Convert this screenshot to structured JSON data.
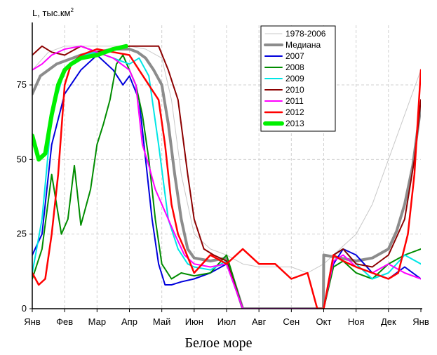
{
  "chart_data": {
    "type": "line",
    "title": "Белое море",
    "ylabel": "L, тыс.км",
    "ylabel_sup": "2",
    "ylim": [
      0,
      95
    ],
    "yticks": [
      0,
      25,
      50,
      75
    ],
    "x_categories": [
      "Янв",
      "Фев",
      "Мар",
      "Апр",
      "Май",
      "Июн",
      "Июл",
      "Авг",
      "Сен",
      "Окт",
      "Ноя",
      "Дек",
      "Янв"
    ],
    "x_unit": "month index (0 = Jan start, 12 = next Jan)",
    "legend_position": "top-right",
    "series": [
      {
        "name": "1978-2006",
        "color": "#c8c8c8",
        "width": 1,
        "x": [
          0,
          0.5,
          1,
          1.5,
          2,
          2.5,
          3,
          3.5,
          4,
          4.3,
          4.6,
          5,
          5.5,
          6,
          6.5,
          7,
          7.5,
          8,
          8.5,
          9,
          9.5,
          10,
          10.5,
          11,
          11.5,
          12
        ],
        "y": [
          80,
          86,
          88,
          88,
          88,
          88,
          88,
          87,
          84,
          70,
          45,
          25,
          20,
          18,
          15,
          14,
          14,
          14,
          12,
          15,
          20,
          25,
          35,
          50,
          65,
          80
        ]
      },
      {
        "name": "Медиана",
        "color": "#8c8c8c",
        "width": 4,
        "x": [
          0,
          0.25,
          0.5,
          0.75,
          1,
          1.5,
          2,
          2.5,
          3,
          3.25,
          3.5,
          3.75,
          4,
          4.2,
          4.4,
          4.6,
          4.8,
          5,
          5.5,
          6,
          6.5,
          7,
          7.5,
          8,
          8.5,
          8.99,
          9,
          9.5,
          10,
          10.5,
          11,
          11.25,
          11.5,
          11.75,
          12
        ],
        "y": [
          72,
          78,
          80,
          82,
          83,
          85,
          86,
          87,
          87,
          86,
          84,
          80,
          75,
          62,
          45,
          30,
          20,
          17,
          16,
          17,
          0,
          0,
          0,
          0,
          0,
          0,
          18,
          17,
          16,
          17,
          20,
          26,
          35,
          48,
          68
        ]
      },
      {
        "name": "2007",
        "color": "#0000dc",
        "width": 2,
        "x": [
          0,
          0.3,
          0.6,
          1,
          1.5,
          2,
          2.5,
          2.8,
          3,
          3.3,
          3.5,
          3.7,
          3.9,
          4.1,
          4.3,
          4.6,
          5,
          5.5,
          6,
          6.5,
          7,
          7.5,
          8,
          8.5,
          9,
          9.3,
          9.6,
          10,
          10.5,
          11,
          11.5,
          12
        ],
        "y": [
          18,
          25,
          55,
          72,
          80,
          85,
          80,
          75,
          78,
          70,
          50,
          30,
          15,
          8,
          8,
          9,
          10,
          12,
          15,
          0,
          0,
          0,
          0,
          0,
          0,
          15,
          20,
          18,
          12,
          10,
          14,
          10
        ]
      },
      {
        "name": "2008",
        "color": "#008c00",
        "width": 2,
        "x": [
          0,
          0.3,
          0.6,
          0.9,
          1.1,
          1.3,
          1.5,
          1.8,
          2,
          2.2,
          2.4,
          2.6,
          2.8,
          3,
          3.2,
          3.4,
          3.6,
          3.8,
          4,
          4.3,
          4.6,
          5,
          5.5,
          6,
          6.5,
          7,
          7.5,
          8,
          8.5,
          9,
          9.3,
          9.6,
          10,
          10.5,
          11,
          11.5,
          12
        ],
        "y": [
          10,
          20,
          45,
          25,
          30,
          48,
          28,
          40,
          55,
          62,
          70,
          82,
          85,
          80,
          75,
          65,
          50,
          30,
          15,
          10,
          12,
          11,
          12,
          18,
          0,
          0,
          0,
          0,
          0,
          0,
          14,
          16,
          12,
          10,
          15,
          18,
          20
        ]
      },
      {
        "name": "2009",
        "color": "#00e6e6",
        "width": 2,
        "x": [
          0,
          0.3,
          0.6,
          1,
          1.5,
          2,
          2.5,
          3,
          3.3,
          3.6,
          3.9,
          4.2,
          4.5,
          4.8,
          5,
          5.5,
          6,
          6.5,
          7,
          7.5,
          8,
          8.5,
          9,
          9.3,
          9.6,
          10,
          10.5,
          11,
          11.5,
          12
        ],
        "y": [
          12,
          30,
          65,
          80,
          85,
          86,
          84,
          82,
          84,
          78,
          55,
          30,
          20,
          15,
          14,
          13,
          16,
          0,
          0,
          0,
          0,
          0,
          0,
          18,
          20,
          15,
          10,
          12,
          18,
          15
        ]
      },
      {
        "name": "2010",
        "color": "#8c0000",
        "width": 2,
        "x": [
          0,
          0.3,
          0.6,
          1,
          1.5,
          2,
          2.5,
          3,
          3.3,
          3.6,
          3.9,
          4.2,
          4.5,
          4.8,
          5,
          5.3,
          5.6,
          6,
          6.5,
          7,
          7.5,
          8,
          8.5,
          9,
          9.3,
          9.6,
          10,
          10.5,
          11,
          11.5,
          11.8,
          12
        ],
        "y": [
          85,
          88,
          86,
          85,
          88,
          86,
          87,
          88,
          88,
          88,
          88,
          80,
          70,
          45,
          30,
          20,
          18,
          16,
          0,
          0,
          0,
          0,
          0,
          0,
          18,
          20,
          15,
          14,
          18,
          30,
          50,
          70
        ]
      },
      {
        "name": "2011",
        "color": "#ff00ff",
        "width": 2,
        "x": [
          0,
          0.3,
          0.6,
          1,
          1.5,
          2,
          2.5,
          3,
          3.2,
          3.4,
          3.6,
          3.8,
          4,
          4.2,
          4.4,
          4.7,
          5,
          5.5,
          6,
          6.5,
          7,
          7.5,
          8,
          8.5,
          9,
          9.3,
          9.6,
          10,
          10.5,
          11,
          11.5,
          12
        ],
        "y": [
          80,
          82,
          85,
          87,
          88,
          86,
          84,
          80,
          75,
          55,
          48,
          40,
          35,
          30,
          25,
          18,
          15,
          14,
          15,
          0,
          0,
          0,
          0,
          0,
          0,
          16,
          18,
          14,
          12,
          15,
          12,
          10
        ]
      },
      {
        "name": "2012",
        "color": "#ff0000",
        "width": 2.5,
        "x": [
          0,
          0.2,
          0.4,
          0.6,
          0.8,
          1,
          1.2,
          1.5,
          2,
          2.5,
          3,
          3.3,
          3.6,
          3.9,
          4.1,
          4.3,
          4.5,
          4.7,
          5,
          5.5,
          6,
          6.5,
          7,
          7.5,
          8,
          8.5,
          8.8,
          9,
          9.3,
          9.6,
          10,
          10.5,
          11,
          11.3,
          11.6,
          11.8,
          12
        ],
        "y": [
          12,
          8,
          10,
          25,
          45,
          75,
          82,
          85,
          87,
          86,
          85,
          80,
          75,
          70,
          55,
          35,
          25,
          20,
          12,
          18,
          15,
          20,
          15,
          15,
          10,
          12,
          0,
          0,
          18,
          16,
          14,
          12,
          10,
          12,
          25,
          45,
          80
        ]
      },
      {
        "name": "2013",
        "color": "#00f000",
        "width": 6,
        "x": [
          0,
          0.2,
          0.4,
          0.6,
          0.8,
          1,
          1.2,
          1.5,
          2,
          2.5,
          2.9
        ],
        "y": [
          58,
          50,
          52,
          65,
          75,
          80,
          82,
          84,
          85,
          87,
          88
        ]
      }
    ]
  }
}
